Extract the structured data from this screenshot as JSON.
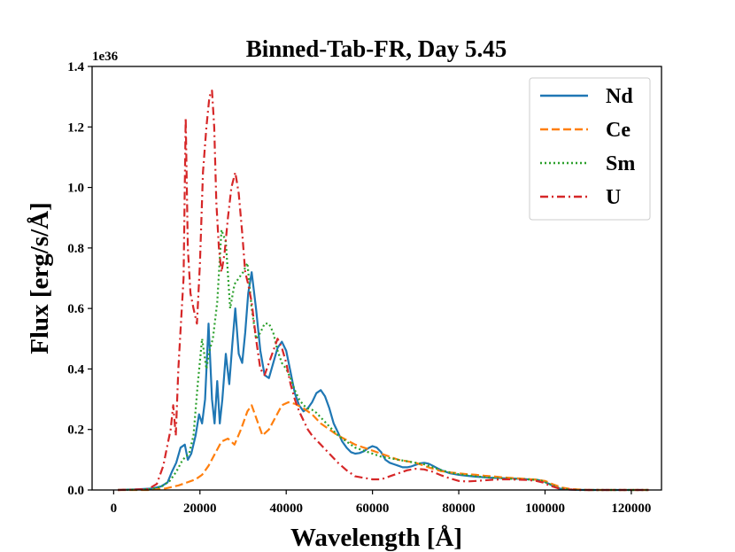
{
  "chart_data": {
    "type": "line",
    "title": "Binned-Tab-FR, Day 5.45",
    "xlabel": "Wavelength [Å]",
    "ylabel": "Flux [erg/s/Å]",
    "y_offset_label": "1e36",
    "xlim": [
      -5000,
      127000
    ],
    "ylim": [
      0,
      1.4
    ],
    "x_ticks": [
      0,
      20000,
      40000,
      60000,
      80000,
      100000,
      120000
    ],
    "x_tick_labels": [
      "0",
      "20000",
      "40000",
      "60000",
      "80000",
      "100000",
      "120000"
    ],
    "y_ticks": [
      0.0,
      0.2,
      0.4,
      0.6,
      0.8,
      1.0,
      1.2,
      1.4
    ],
    "y_tick_labels": [
      "0.0",
      "0.2",
      "0.4",
      "0.6",
      "0.8",
      "1.0",
      "1.2",
      "1.4"
    ],
    "grid": false,
    "legend_position": "top-right",
    "series": [
      {
        "name": "Nd",
        "color": "#1f77b4",
        "dash": "solid",
        "x": [
          1000,
          5000,
          9000,
          11000,
          12500,
          13500,
          14500,
          15500,
          16500,
          17200,
          18000,
          19000,
          19800,
          20500,
          21200,
          22000,
          22800,
          23400,
          24000,
          24600,
          25200,
          26000,
          26800,
          27500,
          28200,
          29000,
          29800,
          30500,
          31200,
          32000,
          33000,
          34000,
          35000,
          36000,
          37000,
          38000,
          39000,
          40000,
          41000,
          42000,
          43000,
          44000,
          45000,
          46000,
          47000,
          48000,
          49000,
          50000,
          51000,
          52000,
          53000,
          54000,
          55000,
          56000,
          57000,
          58000,
          59000,
          60000,
          61000,
          62000,
          63000,
          64000,
          65000,
          66000,
          67000,
          68000,
          69000,
          70000,
          71000,
          72000,
          73000,
          74000,
          75000,
          76000,
          77000,
          78000,
          80000,
          82000,
          84000,
          86000,
          88000,
          90000,
          92000,
          94000,
          96000,
          98000,
          99500,
          101000,
          102000,
          103000,
          104000,
          105000,
          106000,
          110000,
          115000,
          120000,
          124000
        ],
        "y": [
          0.0,
          0.002,
          0.005,
          0.012,
          0.025,
          0.06,
          0.09,
          0.14,
          0.15,
          0.1,
          0.12,
          0.18,
          0.25,
          0.22,
          0.3,
          0.55,
          0.3,
          0.22,
          0.36,
          0.22,
          0.3,
          0.45,
          0.35,
          0.48,
          0.6,
          0.45,
          0.42,
          0.52,
          0.65,
          0.72,
          0.6,
          0.46,
          0.38,
          0.37,
          0.42,
          0.47,
          0.49,
          0.46,
          0.39,
          0.32,
          0.28,
          0.26,
          0.27,
          0.29,
          0.32,
          0.33,
          0.31,
          0.27,
          0.22,
          0.19,
          0.16,
          0.14,
          0.125,
          0.12,
          0.122,
          0.128,
          0.138,
          0.145,
          0.14,
          0.125,
          0.1,
          0.09,
          0.085,
          0.08,
          0.075,
          0.075,
          0.078,
          0.083,
          0.088,
          0.09,
          0.087,
          0.08,
          0.072,
          0.065,
          0.06,
          0.055,
          0.05,
          0.047,
          0.044,
          0.042,
          0.04,
          0.039,
          0.038,
          0.037,
          0.035,
          0.034,
          0.03,
          0.02,
          0.012,
          0.006,
          0.003,
          0.002,
          0.001,
          0.0,
          0.0,
          0.0,
          0.0
        ]
      },
      {
        "name": "Ce",
        "color": "#ff7f0e",
        "dash": "dashed",
        "x": [
          1000,
          8000,
          12000,
          15000,
          17000,
          19000,
          20500,
          22000,
          23500,
          25000,
          26500,
          28000,
          29500,
          31000,
          32000,
          33000,
          34500,
          36000,
          37500,
          39000,
          40500,
          42000,
          44000,
          46000,
          48000,
          50000,
          52000,
          54000,
          56000,
          58000,
          60000,
          62000,
          64000,
          66000,
          68000,
          70000,
          72000,
          74000,
          76000,
          78000,
          80000,
          82000,
          84000,
          86000,
          88000,
          90000,
          92000,
          94000,
          96000,
          98000,
          100000,
          102000,
          104000,
          106000,
          110000,
          124000
        ],
        "y": [
          0.0,
          0.0,
          0.005,
          0.015,
          0.025,
          0.035,
          0.05,
          0.08,
          0.12,
          0.16,
          0.17,
          0.15,
          0.2,
          0.26,
          0.28,
          0.24,
          0.18,
          0.2,
          0.24,
          0.28,
          0.29,
          0.285,
          0.27,
          0.25,
          0.22,
          0.2,
          0.18,
          0.165,
          0.15,
          0.14,
          0.13,
          0.12,
          0.11,
          0.1,
          0.095,
          0.09,
          0.08,
          0.07,
          0.062,
          0.058,
          0.055,
          0.052,
          0.05,
          0.047,
          0.045,
          0.042,
          0.04,
          0.038,
          0.036,
          0.034,
          0.03,
          0.018,
          0.008,
          0.003,
          0.0,
          0.0
        ]
      },
      {
        "name": "Sm",
        "color": "#2ca02c",
        "dash": "dotted",
        "x": [
          1000,
          8000,
          11000,
          13000,
          14500,
          16000,
          17500,
          18500,
          19500,
          20500,
          21500,
          22200,
          23000,
          24000,
          25000,
          26000,
          27000,
          28000,
          29000,
          30000,
          31000,
          32000,
          33000,
          34000,
          35000,
          36000,
          37000,
          38000,
          39000,
          40000,
          41000,
          42000,
          43000,
          44000,
          45000,
          46000,
          47000,
          48000,
          50000,
          52000,
          54000,
          56000,
          58000,
          60000,
          62000,
          64000,
          66000,
          68000,
          70000,
          72000,
          74000,
          76000,
          78000,
          80000,
          84000,
          88000,
          92000,
          96000,
          99000,
          101000,
          103000,
          105000,
          108000,
          124000
        ],
        "y": [
          0.0,
          0.002,
          0.01,
          0.03,
          0.06,
          0.1,
          0.12,
          0.18,
          0.35,
          0.5,
          0.4,
          0.46,
          0.5,
          0.62,
          0.86,
          0.82,
          0.6,
          0.68,
          0.7,
          0.72,
          0.75,
          0.6,
          0.5,
          0.52,
          0.55,
          0.55,
          0.52,
          0.46,
          0.42,
          0.4,
          0.37,
          0.33,
          0.3,
          0.28,
          0.27,
          0.265,
          0.255,
          0.24,
          0.21,
          0.18,
          0.16,
          0.14,
          0.13,
          0.12,
          0.11,
          0.105,
          0.1,
          0.095,
          0.09,
          0.085,
          0.075,
          0.065,
          0.058,
          0.052,
          0.045,
          0.04,
          0.037,
          0.035,
          0.032,
          0.02,
          0.008,
          0.003,
          0.0,
          0.0
        ]
      },
      {
        "name": "U",
        "color": "#d62728",
        "dash": "dashdot",
        "x": [
          1000,
          8000,
          10000,
          11500,
          12500,
          13200,
          13800,
          14400,
          15000,
          15600,
          16200,
          16700,
          17200,
          17800,
          18500,
          19300,
          20000,
          20700,
          21500,
          22200,
          22800,
          23300,
          23800,
          24400,
          25000,
          25700,
          26500,
          27300,
          28200,
          29000,
          29800,
          30500,
          31200,
          32000,
          33000,
          34000,
          35000,
          36000,
          37000,
          38000,
          39000,
          40000,
          41000,
          42000,
          43000,
          44000,
          45000,
          46000,
          48000,
          50000,
          52000,
          54000,
          56000,
          58000,
          60000,
          62000,
          64000,
          66000,
          68000,
          70000,
          72000,
          74000,
          76000,
          78000,
          80000,
          82000,
          84000,
          86000,
          88000,
          90000,
          92000,
          94000,
          96000,
          98000,
          99500,
          101000,
          103000,
          105000,
          108000,
          124000
        ],
        "y": [
          0.0,
          0.003,
          0.02,
          0.08,
          0.15,
          0.2,
          0.28,
          0.18,
          0.4,
          0.55,
          0.7,
          1.23,
          0.8,
          0.65,
          0.6,
          0.55,
          0.75,
          1.05,
          1.2,
          1.3,
          1.32,
          1.2,
          0.95,
          0.8,
          0.72,
          0.78,
          0.9,
          1.0,
          1.05,
          0.98,
          0.85,
          0.72,
          0.68,
          0.62,
          0.5,
          0.4,
          0.38,
          0.42,
          0.46,
          0.5,
          0.47,
          0.42,
          0.35,
          0.3,
          0.26,
          0.23,
          0.2,
          0.18,
          0.15,
          0.12,
          0.09,
          0.065,
          0.045,
          0.04,
          0.035,
          0.035,
          0.045,
          0.055,
          0.065,
          0.07,
          0.068,
          0.06,
          0.048,
          0.038,
          0.03,
          0.028,
          0.03,
          0.032,
          0.034,
          0.035,
          0.035,
          0.034,
          0.033,
          0.03,
          0.025,
          0.015,
          0.006,
          0.002,
          0.0,
          0.0
        ]
      }
    ]
  }
}
